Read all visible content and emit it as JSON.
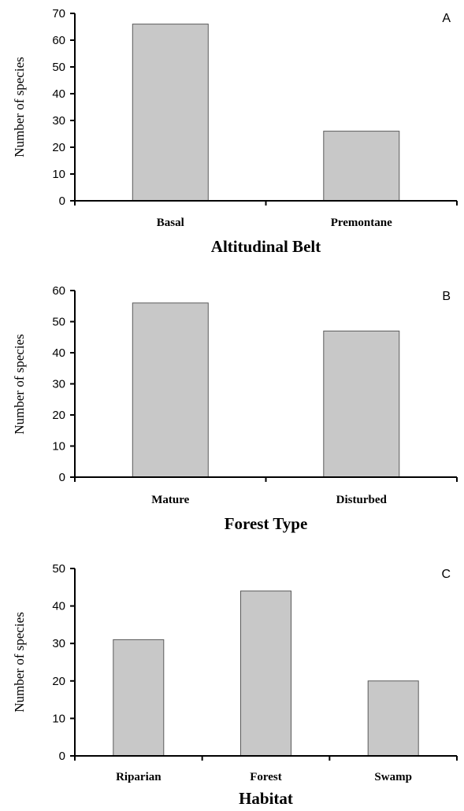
{
  "chart_data": [
    {
      "type": "bar",
      "panel_label": "A",
      "categories": [
        "Basal",
        "Premontane"
      ],
      "values": [
        66,
        26
      ],
      "xlabel": "Altitudinal Belt",
      "ylabel": "Number of species",
      "ylim": [
        0,
        70
      ],
      "yticks": [
        0,
        10,
        20,
        30,
        40,
        50,
        60,
        70
      ],
      "bar_color": "#c8c8c8",
      "grid": false,
      "legend": "none"
    },
    {
      "type": "bar",
      "panel_label": "B",
      "categories": [
        "Mature",
        "Disturbed"
      ],
      "values": [
        56,
        47
      ],
      "xlabel": "Forest Type",
      "ylabel": "Number of species",
      "ylim": [
        0,
        60
      ],
      "yticks": [
        0,
        10,
        20,
        30,
        40,
        50,
        60
      ],
      "bar_color": "#c8c8c8",
      "grid": false,
      "legend": "none"
    },
    {
      "type": "bar",
      "panel_label": "C",
      "categories": [
        "Riparian",
        "Forest",
        "Swamp"
      ],
      "values": [
        31,
        44,
        20
      ],
      "xlabel": "Habitat",
      "ylabel": "Number of species",
      "ylim": [
        0,
        50
      ],
      "yticks": [
        0,
        10,
        20,
        30,
        40,
        50
      ],
      "bar_color": "#c8c8c8",
      "grid": false,
      "legend": "none"
    }
  ]
}
